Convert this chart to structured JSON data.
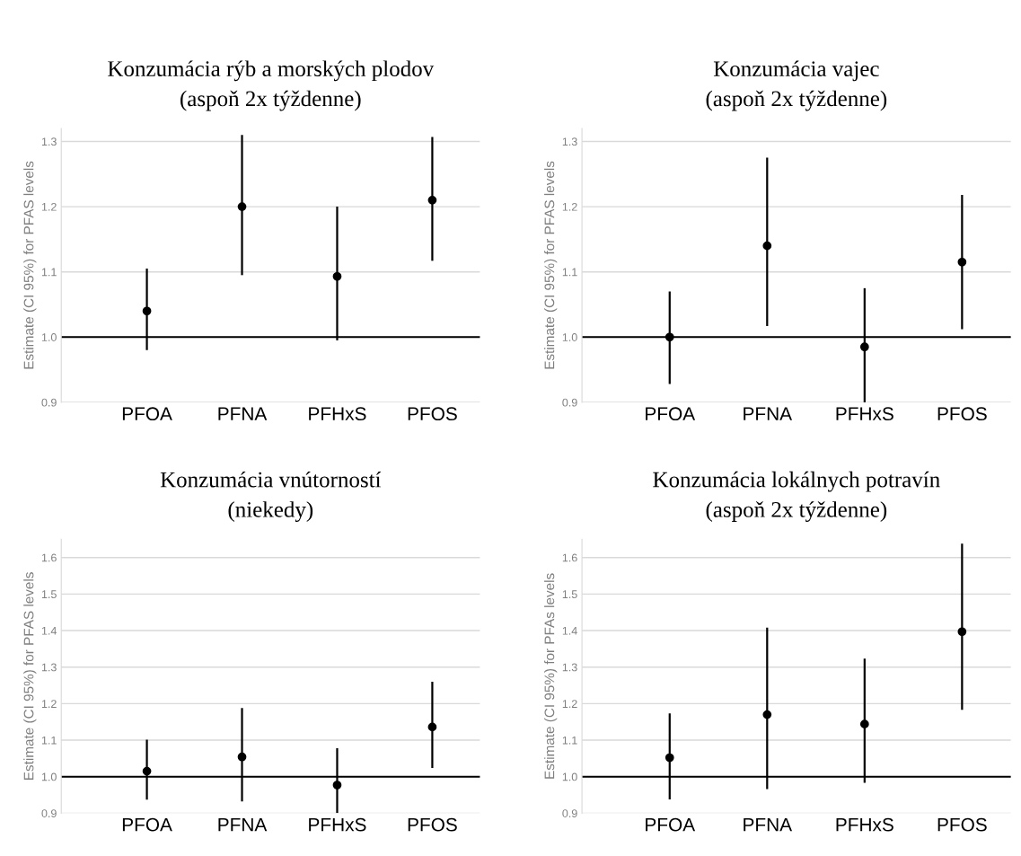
{
  "chart_data": [
    {
      "type": "scatter",
      "title": "Konzumácia rýb a morských plodov",
      "subtitle": "(aspoň 2x týždenne)",
      "ylabel": "Estimate (CI 95%) for PFAS levels",
      "categories": [
        "PFOA",
        "PFNA",
        "PFHxS",
        "PFOS"
      ],
      "values": [
        1.04,
        1.2,
        1.093,
        1.21
      ],
      "errors": [
        [
          0.98,
          1.105
        ],
        [
          1.095,
          1.31
        ],
        [
          0.995,
          1.2
        ],
        [
          1.117,
          1.307
        ]
      ],
      "color": "#000000",
      "marker": "circle",
      "ylim": [
        0.9,
        1.32
      ],
      "yticks": [
        {
          "value": 0.9,
          "label": "0.9"
        },
        {
          "value": 1.0,
          "label": "1.0"
        },
        {
          "value": 1.1,
          "label": "1.1"
        },
        {
          "value": 1.2,
          "label": "1.2"
        },
        {
          "value": 1.3,
          "label": "1.3"
        }
      ],
      "grid": "y",
      "ref_lines": [
        {
          "axis": "y",
          "value": 1.0,
          "color": "#000000"
        }
      ]
    },
    {
      "type": "scatter",
      "title": "Konzumácia vajec",
      "subtitle": "(aspoň 2x týždenne)",
      "ylabel": "Estimate (CI 95%) for PFAS levels",
      "categories": [
        "PFOA",
        "PFNA",
        "PFHxS",
        "PFOS"
      ],
      "values": [
        1.0,
        1.14,
        0.985,
        1.115
      ],
      "errors": [
        [
          0.928,
          1.07
        ],
        [
          1.017,
          1.275
        ],
        [
          0.9,
          1.075
        ],
        [
          1.012,
          1.218
        ]
      ],
      "color": "#000000",
      "marker": "circle",
      "ylim": [
        0.9,
        1.32
      ],
      "yticks": [
        {
          "value": 0.9,
          "label": "0.9"
        },
        {
          "value": 1.0,
          "label": "1.0"
        },
        {
          "value": 1.1,
          "label": "1.1"
        },
        {
          "value": 1.2,
          "label": "1.2"
        },
        {
          "value": 1.3,
          "label": "1.3"
        }
      ],
      "grid": "y",
      "ref_lines": [
        {
          "axis": "y",
          "value": 1.0,
          "color": "#000000"
        }
      ]
    },
    {
      "type": "scatter",
      "title": "Konzumácia vnútorností",
      "subtitle": "(niekedy)",
      "ylabel": "Estimate (CI 95%) for PFAS levels",
      "categories": [
        "PFOA",
        "PFNA",
        "PFHxS",
        "PFOS"
      ],
      "values": [
        1.015,
        1.054,
        0.977,
        1.136
      ],
      "errors": [
        [
          0.937,
          1.101
        ],
        [
          0.932,
          1.188
        ],
        [
          0.9,
          1.078
        ],
        [
          1.024,
          1.26
        ]
      ],
      "color": "#000000",
      "marker": "circle",
      "ylim": [
        0.9,
        1.65
      ],
      "yticks": [
        {
          "value": 0.9,
          "label": "0.9"
        },
        {
          "value": 1.0,
          "label": "1.0"
        },
        {
          "value": 1.1,
          "label": "1.1"
        },
        {
          "value": 1.2,
          "label": "1.2"
        },
        {
          "value": 1.3,
          "label": "1.3"
        },
        {
          "value": 1.4,
          "label": "1.4"
        },
        {
          "value": 1.5,
          "label": "1.5"
        },
        {
          "value": 1.6,
          "label": "1.6"
        }
      ],
      "grid": "y",
      "ref_lines": [
        {
          "axis": "y",
          "value": 1.0,
          "color": "#000000"
        }
      ]
    },
    {
      "type": "scatter",
      "title": "Konzumácia lokálnych potravín",
      "subtitle": "(aspoň 2x týždenne)",
      "ylabel": "Estimate (CI 95%) for PFAs levels",
      "categories": [
        "PFOA",
        "PFNA",
        "PFHxS",
        "PFOS"
      ],
      "values": [
        1.052,
        1.17,
        1.144,
        1.397
      ],
      "errors": [
        [
          0.938,
          1.173
        ],
        [
          0.966,
          1.408
        ],
        [
          0.983,
          1.323
        ],
        [
          1.183,
          1.638
        ]
      ],
      "color": "#000000",
      "marker": "circle",
      "ylim": [
        0.9,
        1.65
      ],
      "yticks": [
        {
          "value": 0.9,
          "label": "0.9"
        },
        {
          "value": 1.0,
          "label": "1.0"
        },
        {
          "value": 1.1,
          "label": "1.1"
        },
        {
          "value": 1.2,
          "label": "1.2"
        },
        {
          "value": 1.3,
          "label": "1.3"
        },
        {
          "value": 1.4,
          "label": "1.4"
        },
        {
          "value": 1.5,
          "label": "1.5"
        },
        {
          "value": 1.6,
          "label": "1.6"
        }
      ],
      "grid": "y",
      "ref_lines": [
        {
          "axis": "y",
          "value": 1.0,
          "color": "#000000"
        }
      ]
    }
  ]
}
